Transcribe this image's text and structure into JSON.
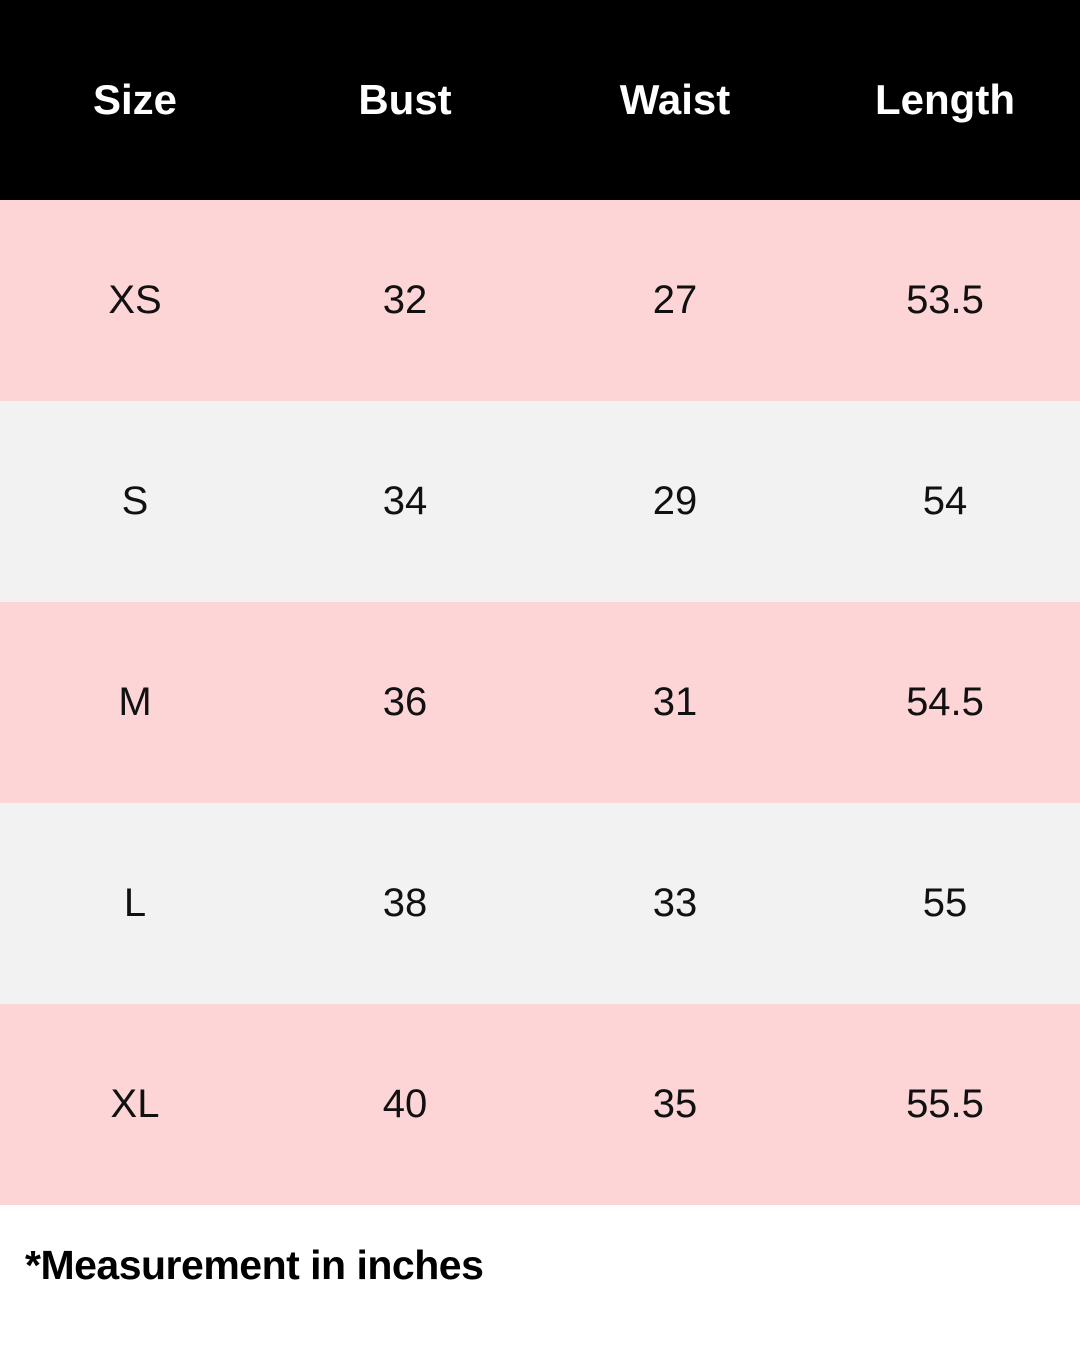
{
  "table": {
    "columns": [
      "Size",
      "Bust",
      "Waist",
      "Length"
    ],
    "rows": [
      [
        "XS",
        "32",
        "27",
        "53.5"
      ],
      [
        "S",
        "34",
        "29",
        "54"
      ],
      [
        "M",
        "36",
        "31",
        "54.5"
      ],
      [
        "L",
        "38",
        "33",
        "55"
      ],
      [
        "XL",
        "40",
        "35",
        "55.5"
      ]
    ]
  },
  "footnote": "*Measurement in inches",
  "colors": {
    "header_bg": "#000000",
    "row_pink": "#fdd5d7",
    "row_gray": "#f2f2f2"
  }
}
